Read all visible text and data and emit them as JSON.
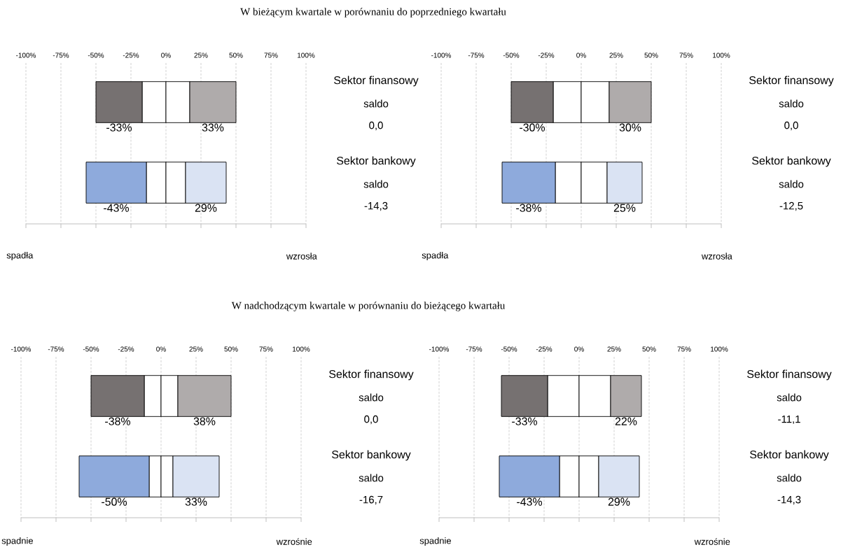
{
  "chart_data": [
    {
      "type": "bar",
      "orientation": "horizontal",
      "stacked": true,
      "title": "W bieżącym kwartale w porównaniu do poprzedniego kwartału",
      "categories": [
        "Sektor finansowy",
        "Sektor bankowy"
      ],
      "series": [
        {
          "colors": [
            "#ffffff",
            "#ffffff"
          ],
          "values": [
            -17,
            -14
          ],
          "value_labels": [
            null,
            null
          ]
        },
        {
          "colors": [
            "#767171",
            "#8eaadc"
          ],
          "values": [
            -33,
            -43
          ],
          "value_labels": [
            "-33%",
            "-43%"
          ]
        },
        {
          "colors": [
            "#ffffff",
            "#ffffff"
          ],
          "values": [
            17,
            14
          ],
          "value_labels": [
            null,
            null
          ]
        },
        {
          "colors": [
            "#afabab",
            "#dae3f3"
          ],
          "values": [
            33,
            29
          ],
          "value_labels": [
            "33%",
            "29%"
          ]
        }
      ],
      "xlim": [
        -100,
        100
      ],
      "xticks": [
        {
          "value": -100,
          "label": "-100%"
        },
        {
          "value": -75,
          "label": "-75%"
        },
        {
          "value": -50,
          "label": "-50%"
        },
        {
          "value": -25,
          "label": "-25%"
        },
        {
          "value": 0,
          "label": "0%"
        },
        {
          "value": 25,
          "label": "25%"
        },
        {
          "value": 50,
          "label": "50%"
        },
        {
          "value": 75,
          "label": "75%"
        },
        {
          "value": 100,
          "label": "100%"
        }
      ],
      "grid": "x",
      "annotations": [
        "saldo",
        "0,0",
        "saldo",
        "-14,3",
        "spadła",
        "wzrosła"
      ]
    },
    {
      "type": "bar",
      "orientation": "horizontal",
      "stacked": true,
      "categories": [
        "Sektor finansowy",
        "Sektor bankowy"
      ],
      "series": [
        {
          "colors": [
            "#ffffff",
            "#ffffff"
          ],
          "values": [
            -20,
            -18.5
          ],
          "value_labels": [
            null,
            null
          ]
        },
        {
          "colors": [
            "#767171",
            "#8eaadc"
          ],
          "values": [
            -30,
            -38
          ],
          "value_labels": [
            "-30%",
            "-38%"
          ]
        },
        {
          "colors": [
            "#ffffff",
            "#ffffff"
          ],
          "values": [
            20,
            18.5
          ],
          "value_labels": [
            null,
            null
          ]
        },
        {
          "colors": [
            "#afabab",
            "#dae3f3"
          ],
          "values": [
            30,
            25
          ],
          "value_labels": [
            "30%",
            "25%"
          ]
        }
      ],
      "xlim": [
        -100,
        100
      ],
      "xticks": [
        {
          "value": -100,
          "label": "-100%"
        },
        {
          "value": -75,
          "label": "-75%"
        },
        {
          "value": -50,
          "label": "-50%"
        },
        {
          "value": -25,
          "label": "-25%"
        },
        {
          "value": 0,
          "label": "0%"
        },
        {
          "value": 25,
          "label": "25%"
        },
        {
          "value": 50,
          "label": "50%"
        },
        {
          "value": 75,
          "label": "75%"
        },
        {
          "value": 100,
          "label": "100%"
        }
      ],
      "grid": "x",
      "annotations": [
        "saldo",
        "0,0",
        "saldo",
        "-12,5",
        "spadła",
        "wzrosła"
      ]
    },
    {
      "type": "bar",
      "orientation": "horizontal",
      "stacked": true,
      "title": "W nadchodzącym kwartale w porównaniu do bieżącego kwartału",
      "categories": [
        "Sektor finansowy",
        "Sektor bankowy"
      ],
      "series": [
        {
          "colors": [
            "#ffffff",
            "#ffffff"
          ],
          "values": [
            -12,
            -8.5
          ],
          "value_labels": [
            null,
            null
          ]
        },
        {
          "colors": [
            "#767171",
            "#8eaadc"
          ],
          "values": [
            -38,
            -50
          ],
          "value_labels": [
            "-38%",
            "-50%"
          ]
        },
        {
          "colors": [
            "#ffffff",
            "#ffffff"
          ],
          "values": [
            12,
            8.5
          ],
          "value_labels": [
            null,
            null
          ]
        },
        {
          "colors": [
            "#afabab",
            "#dae3f3"
          ],
          "values": [
            38,
            33
          ],
          "value_labels": [
            "38%",
            "33%"
          ]
        }
      ],
      "xlim": [
        -100,
        100
      ],
      "xticks": [
        {
          "value": -100,
          "label": "-100%"
        },
        {
          "value": -75,
          "label": "-75%"
        },
        {
          "value": -50,
          "label": "-50%"
        },
        {
          "value": -25,
          "label": "-25%"
        },
        {
          "value": 0,
          "label": "0%"
        },
        {
          "value": 25,
          "label": "25%"
        },
        {
          "value": 50,
          "label": "50%"
        },
        {
          "value": 75,
          "label": "75%"
        },
        {
          "value": 100,
          "label": "100%"
        }
      ],
      "grid": "x",
      "annotations": [
        "saldo",
        "0,0",
        "saldo",
        "-16,7",
        "spadnie",
        "wzrośnie"
      ]
    },
    {
      "type": "bar",
      "orientation": "horizontal",
      "stacked": true,
      "categories": [
        "Sektor finansowy",
        "Sektor bankowy"
      ],
      "series": [
        {
          "colors": [
            "#ffffff",
            "#ffffff"
          ],
          "values": [
            -22.5,
            -14
          ],
          "value_labels": [
            null,
            null
          ]
        },
        {
          "colors": [
            "#767171",
            "#8eaadc"
          ],
          "values": [
            -33,
            -43
          ],
          "value_labels": [
            "-33%",
            "-43%"
          ]
        },
        {
          "colors": [
            "#ffffff",
            "#ffffff"
          ],
          "values": [
            22.5,
            14
          ],
          "value_labels": [
            null,
            null
          ]
        },
        {
          "colors": [
            "#afabab",
            "#dae3f3"
          ],
          "values": [
            22,
            29
          ],
          "value_labels": [
            "22%",
            "29%"
          ]
        }
      ],
      "xlim": [
        -100,
        100
      ],
      "xticks": [
        {
          "value": -100,
          "label": "-100%"
        },
        {
          "value": -75,
          "label": "-75%"
        },
        {
          "value": -50,
          "label": "-50%"
        },
        {
          "value": -25,
          "label": "-25%"
        },
        {
          "value": 0,
          "label": "0%"
        },
        {
          "value": 25,
          "label": "25%"
        },
        {
          "value": 50,
          "label": "50%"
        },
        {
          "value": 75,
          "label": "75%"
        },
        {
          "value": 100,
          "label": "100%"
        }
      ],
      "grid": "x",
      "annotations": [
        "saldo",
        "-11,1",
        "saldo",
        "-14,3",
        "spadnie",
        "wzrośnie"
      ]
    }
  ]
}
